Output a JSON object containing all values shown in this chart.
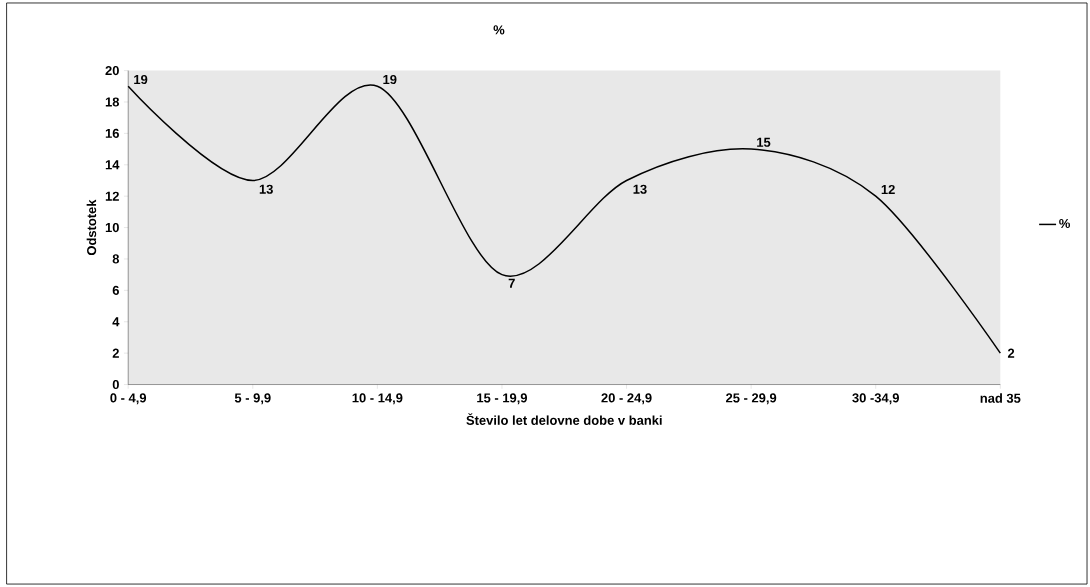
{
  "chart_data": {
    "type": "line",
    "title": "%",
    "xlabel": "Število let delovne dobe v banki",
    "ylabel": "Odstotek",
    "categories": [
      "0 - 4,9",
      "5 - 9,9",
      "10 - 14,9",
      "15 - 19,9",
      "20 - 24,9",
      "25 - 29,9",
      "30 -34,9",
      "nad 35"
    ],
    "series": [
      {
        "name": "%",
        "color": "#000000",
        "values": [
          19,
          13,
          19,
          7,
          13,
          15,
          12,
          2
        ]
      }
    ],
    "ylim": [
      0,
      20
    ],
    "yticks": [
      0,
      2,
      4,
      6,
      8,
      10,
      12,
      14,
      16,
      18,
      20
    ],
    "data_labels": true,
    "legend": "right",
    "grid": false,
    "marker": "none",
    "line_style": "solid"
  }
}
